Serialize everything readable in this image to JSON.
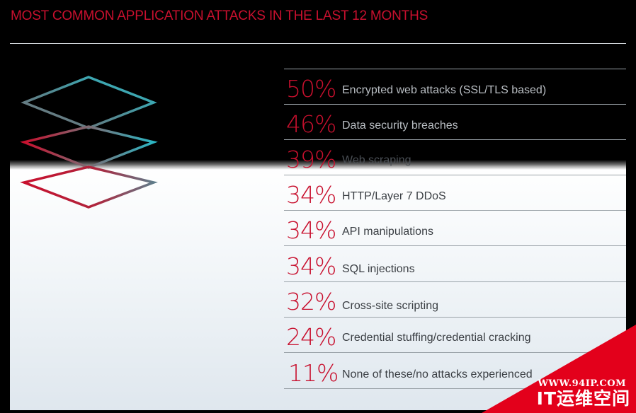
{
  "header": {
    "title": "MOST COMMON APPLICATION ATTACKS IN THE LAST 12 MONTHS"
  },
  "graphic": {
    "icon": "stacked-layers-icon",
    "colors": {
      "teal": "#2bb5c3",
      "red": "#c8102e",
      "gray": "#6d6f78"
    }
  },
  "attacks": [
    {
      "percent": "50%",
      "label": "Encrypted web attacks (SSL/TLS based)"
    },
    {
      "percent": "46%",
      "label": "Data security breaches"
    },
    {
      "percent": "39%",
      "label": "Web scraping"
    },
    {
      "percent": "34%",
      "label": "HTTP/Layer 7 DDoS"
    },
    {
      "percent": "34%",
      "label": "API manipulations"
    },
    {
      "percent": "34%",
      "label": "SQL injections"
    },
    {
      "percent": "32%",
      "label": "Cross-site scripting"
    },
    {
      "percent": "24%",
      "label": "Credential stuffing/credential cracking"
    },
    {
      "percent": "11%",
      "label": "None of these/no attacks experienced"
    }
  ],
  "watermark": {
    "url": "WWW.94IP.COM",
    "text": "IT运维空间",
    "color": "#e3001b"
  },
  "colors": {
    "accent": "#c8102e",
    "background": "#000000",
    "rule": "#9aa2a8"
  }
}
